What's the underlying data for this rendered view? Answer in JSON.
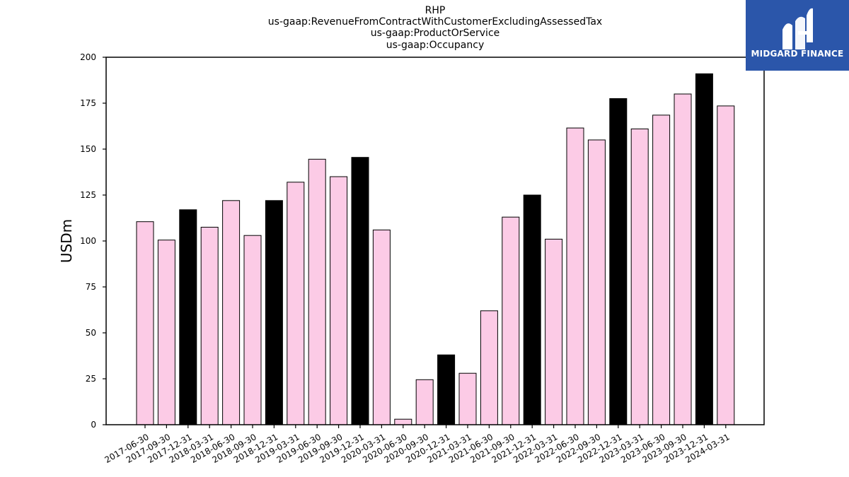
{
  "title_lines": [
    "RHP",
    "us-gaap:RevenueFromContractWithCustomerExcludingAssessedTax",
    "us-gaap:ProductOrService",
    "us-gaap:Occupancy"
  ],
  "logo": {
    "text": "MIDGARD FINANCE",
    "background": "#2b56aa",
    "icon": "midgard-logo-icon"
  },
  "chart_data": {
    "type": "bar",
    "title": "RHP\nus-gaap:RevenueFromContractWithCustomerExcludingAssessedTax\nus-gaap:ProductOrService\nus-gaap:Occupancy",
    "xlabel": "",
    "ylabel": "USDm",
    "ylim": [
      0,
      200
    ],
    "yticks": [
      0,
      25,
      50,
      75,
      100,
      125,
      150,
      175,
      200
    ],
    "grid": false,
    "colors": {
      "quarter": "#fccbe6",
      "year_end": "#000000",
      "edge": "#000000"
    },
    "categories": [
      "2017-06-30",
      "2017-09-30",
      "2017-12-31",
      "2018-03-31",
      "2018-06-30",
      "2018-09-30",
      "2018-12-31",
      "2019-03-31",
      "2019-06-30",
      "2019-09-30",
      "2019-12-31",
      "2020-03-31",
      "2020-06-30",
      "2020-09-30",
      "2020-12-31",
      "2021-03-31",
      "2021-06-30",
      "2021-09-30",
      "2021-12-31",
      "2022-03-31",
      "2022-06-30",
      "2022-09-30",
      "2022-12-31",
      "2023-03-31",
      "2023-06-30",
      "2023-09-30",
      "2023-12-31",
      "2024-03-31"
    ],
    "values": [
      110.5,
      100.5,
      117,
      107.5,
      122,
      103,
      122,
      132,
      144.5,
      135,
      145.5,
      106,
      3,
      24.5,
      38,
      28,
      62,
      113,
      125,
      101,
      161.5,
      155,
      177.5,
      161,
      168.5,
      180,
      191,
      173.5
    ]
  }
}
